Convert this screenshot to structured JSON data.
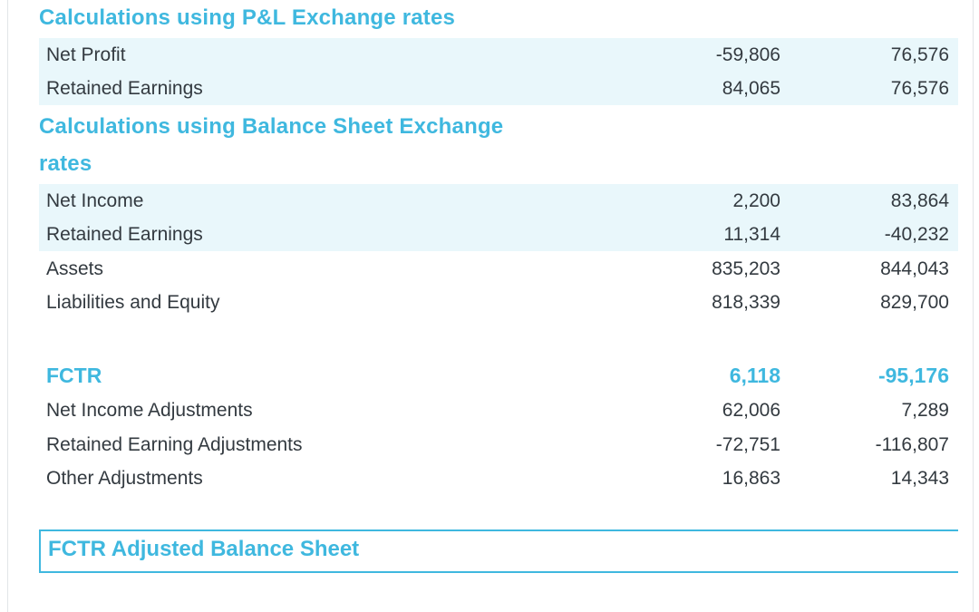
{
  "pl_section": {
    "title": "Calculations using P&L Exchange rates",
    "rows": [
      {
        "label": "Net Profit",
        "v1": "-59,806",
        "v2": "76,576"
      },
      {
        "label": "Retained Earnings",
        "v1": "84,065",
        "v2": "76,576"
      }
    ]
  },
  "bs_section": {
    "title_line1": "Calculations using Balance Sheet Exchange",
    "title_line2": "rates",
    "rows": [
      {
        "label": "Net Income",
        "v1": "2,200",
        "v2": "83,864"
      },
      {
        "label": "Retained Earnings",
        "v1": "11,314",
        "v2": "-40,232"
      },
      {
        "label": "Assets",
        "v1": "835,203",
        "v2": "844,043"
      },
      {
        "label": "Liabilities and Equity",
        "v1": "818,339",
        "v2": "829,700"
      }
    ]
  },
  "fctr_section": {
    "header": {
      "label": "FCTR",
      "v1": "6,118",
      "v2": "-95,176"
    },
    "rows": [
      {
        "label": "Net Income Adjustments",
        "v1": "62,006",
        "v2": "7,289"
      },
      {
        "label": "Retained Earning Adjustments",
        "v1": "-72,751",
        "v2": "-116,807"
      },
      {
        "label": "Other Adjustments",
        "v1": "16,863",
        "v2": "14,343"
      }
    ]
  },
  "adjusted_section": {
    "title": "FCTR Adjusted Balance Sheet"
  }
}
